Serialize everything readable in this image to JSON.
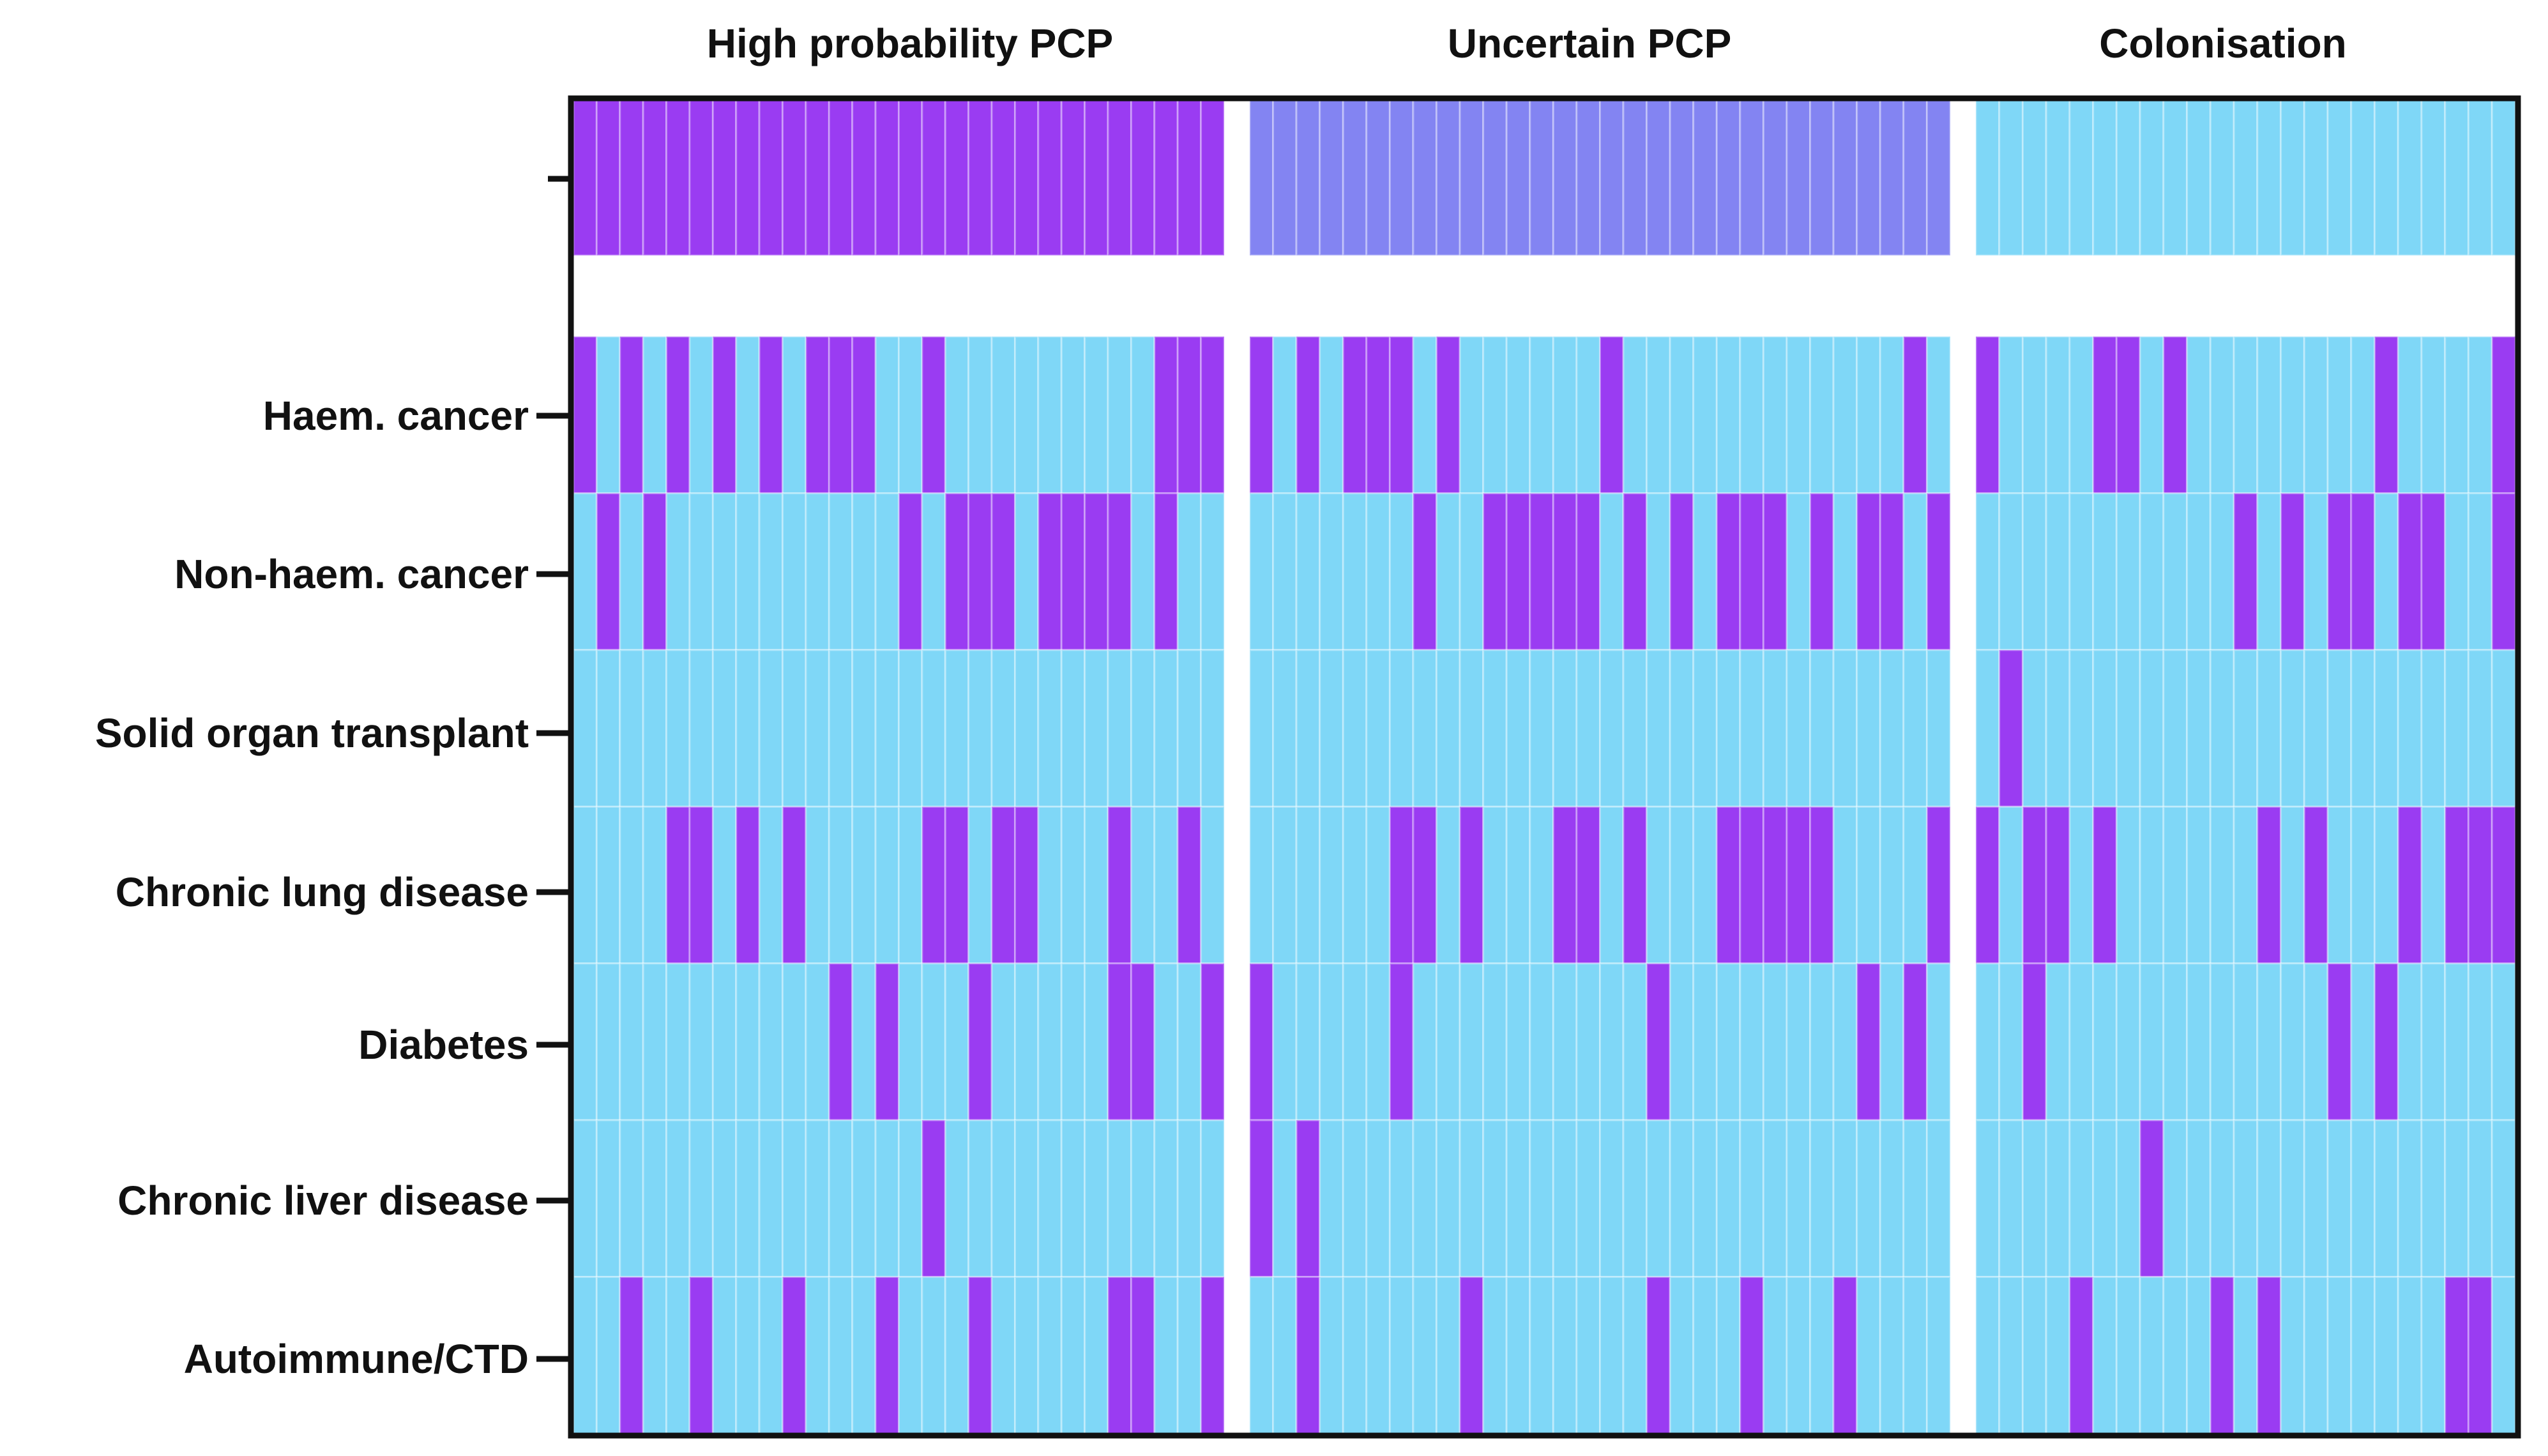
{
  "chart_data": {
    "type": "heatmap",
    "title": "",
    "groups": [
      {
        "name": "High probability PCP",
        "n": 28
      },
      {
        "name": "Uncertain PCP",
        "n": 30
      },
      {
        "name": "Colonisation",
        "n": 23
      }
    ],
    "header_row": {
      "label": "",
      "colors": [
        "#9a3cf2",
        "#8384f2",
        "#7fd7f7"
      ]
    },
    "rows": [
      {
        "label": "Haem. cancer",
        "hits": [
          [
            0,
            2,
            4,
            6,
            8,
            10,
            11,
            12,
            15,
            25,
            26,
            27
          ],
          [
            0,
            2,
            4,
            5,
            6,
            8,
            15,
            28
          ],
          [
            0,
            5,
            6,
            8,
            17,
            22
          ]
        ]
      },
      {
        "label": "Non-haem. cancer",
        "hits": [
          [
            1,
            3,
            14,
            16,
            17,
            18,
            20,
            21,
            22,
            23,
            25
          ],
          [
            7,
            10,
            11,
            12,
            13,
            14,
            16,
            18,
            20,
            21,
            22,
            24,
            26,
            27,
            29
          ],
          [
            11,
            13,
            15,
            16,
            18,
            19,
            22
          ]
        ]
      },
      {
        "label": "Solid organ transplant",
        "hits": [
          [],
          [],
          [
            1
          ]
        ]
      },
      {
        "label": "Chronic lung disease",
        "hits": [
          [
            4,
            5,
            7,
            9,
            15,
            16,
            18,
            19,
            23,
            26
          ],
          [
            6,
            7,
            9,
            13,
            14,
            16,
            20,
            21,
            22,
            23,
            24,
            29
          ],
          [
            0,
            2,
            3,
            5,
            12,
            14,
            18,
            20,
            21,
            22
          ]
        ]
      },
      {
        "label": "Diabetes",
        "hits": [
          [
            11,
            13,
            17,
            23,
            24,
            27
          ],
          [
            0,
            6,
            17,
            26,
            28
          ],
          [
            2,
            15,
            17
          ]
        ]
      },
      {
        "label": "Chronic liver disease",
        "hits": [
          [
            15
          ],
          [
            0,
            2
          ],
          [
            7
          ]
        ]
      },
      {
        "label": "Autoimmune/CTD",
        "hits": [
          [
            2,
            5,
            9,
            13,
            17,
            23,
            24,
            27
          ],
          [
            2,
            9,
            17,
            21,
            25
          ],
          [
            4,
            10,
            12,
            20,
            21
          ]
        ]
      }
    ],
    "legend": {
      "present": "#9a3cf2",
      "absent": "#7fd7f7",
      "placement": "none"
    }
  },
  "labels": {
    "group_titles": [
      "High probability PCP",
      "Uncertain PCP",
      "Colonisation"
    ],
    "row_labels": [
      "Haem. cancer",
      "Non-haem. cancer",
      "Solid organ transplant",
      "Chronic lung disease",
      "Diabetes",
      "Chronic liver disease",
      "Autoimmune/CTD"
    ]
  }
}
